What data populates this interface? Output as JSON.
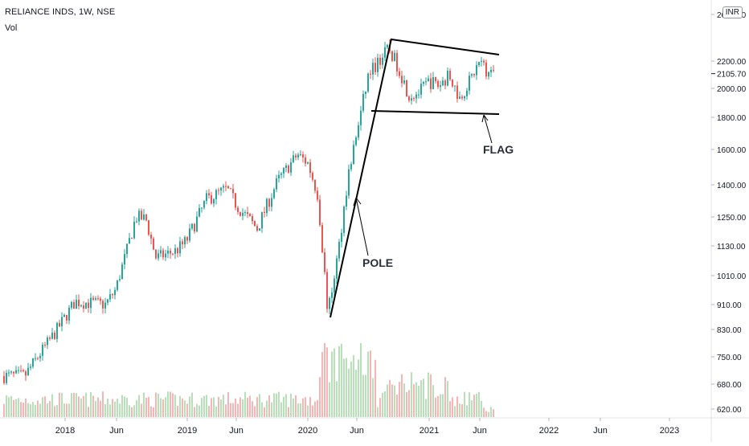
{
  "header": {
    "symbol_line": "RELIANCE INDS, 1W, NSE",
    "indicator": "Vol",
    "currency": "INR"
  },
  "colors": {
    "up": "#26a69a",
    "down": "#ef5350",
    "vol_up": "#b8e0b8",
    "vol_down": "#f5b5b5",
    "drawing": "#000000",
    "label": "#2a2e39"
  },
  "chart_data": {
    "type": "candlestick",
    "title": "RELIANCE INDS, 1W, NSE",
    "y_axis": {
      "scale": "log",
      "ticks": [
        "2600.00",
        "2200.00",
        "2000.00",
        "1800.00",
        "1600.00",
        "1400.00",
        "1250.00",
        "1130.00",
        "1010.00",
        "910.00",
        "830.00",
        "750.00",
        "680.00",
        "620.00"
      ],
      "last_price": "2105.70",
      "range": [
        600,
        2700
      ]
    },
    "x_axis": {
      "ticks": [
        "2018",
        "Jun",
        "2019",
        "Jun",
        "2020",
        "Jun",
        "2021",
        "Jun",
        "2022",
        "Jun",
        "2023"
      ]
    },
    "approx_close_path": [
      {
        "t": "2017-09",
        "p": 700
      },
      {
        "t": "2017-12",
        "p": 820
      },
      {
        "t": "2018-02",
        "p": 920
      },
      {
        "t": "2018-05",
        "p": 910
      },
      {
        "t": "2018-06",
        "p": 960
      },
      {
        "t": "2018-08",
        "p": 1250
      },
      {
        "t": "2018-09",
        "p": 1240
      },
      {
        "t": "2018-10",
        "p": 1080
      },
      {
        "t": "2018-12",
        "p": 1110
      },
      {
        "t": "2019-01",
        "p": 1150
      },
      {
        "t": "2019-03",
        "p": 1330
      },
      {
        "t": "2019-05",
        "p": 1380
      },
      {
        "t": "2019-06",
        "p": 1300
      },
      {
        "t": "2019-08",
        "p": 1200
      },
      {
        "t": "2019-10",
        "p": 1420
      },
      {
        "t": "2019-12",
        "p": 1570
      },
      {
        "t": "2020-01",
        "p": 1520
      },
      {
        "t": "2020-02",
        "p": 1350
      },
      {
        "t": "2020-03",
        "p": 880
      },
      {
        "t": "2020-04",
        "p": 1100
      },
      {
        "t": "2020-05",
        "p": 1450
      },
      {
        "t": "2020-06",
        "p": 1750
      },
      {
        "t": "2020-07",
        "p": 2100
      },
      {
        "t": "2020-09",
        "p": 2300
      },
      {
        "t": "2020-10",
        "p": 2150
      },
      {
        "t": "2020-11",
        "p": 1950
      },
      {
        "t": "2020-12",
        "p": 1970
      },
      {
        "t": "2021-01",
        "p": 2050
      },
      {
        "t": "2021-02",
        "p": 2020
      },
      {
        "t": "2021-03",
        "p": 2100
      },
      {
        "t": "2021-04",
        "p": 1930
      },
      {
        "t": "2021-05",
        "p": 2050
      },
      {
        "t": "2021-06",
        "p": 2200
      },
      {
        "t": "2021-07",
        "p": 2105.7
      }
    ],
    "annotations": [
      {
        "label": "POLE"
      },
      {
        "label": "FLAG"
      }
    ]
  }
}
